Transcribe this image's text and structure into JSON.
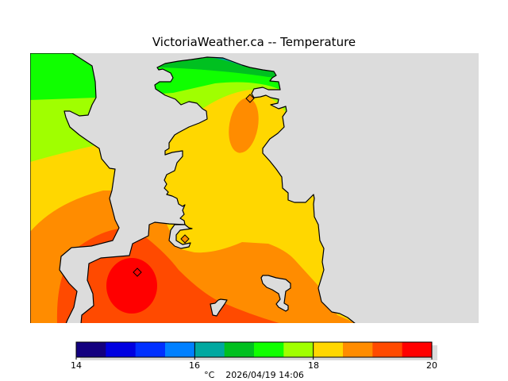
{
  "title": "VictoriaWeather.ca -- Temperature",
  "colorbar": {
    "min": 14,
    "max": 20,
    "ticks": [
      "14",
      "16",
      "18",
      "20"
    ],
    "tick_values": [
      14,
      16,
      18,
      20
    ],
    "colors": [
      "#13007f",
      "#0000e0",
      "#0030ff",
      "#0080ff",
      "#00a8a0",
      "#00c020",
      "#10ff00",
      "#a0ff00",
      "#ffd700",
      "#ff8c00",
      "#ff4a00",
      "#ff0000"
    ]
  },
  "caption": {
    "units": "°C",
    "timestamp": "2026/04/19 14:06"
  },
  "map": {
    "land_color": "#dcdcdc",
    "zone_colors": {
      "teal": "#00a8a0",
      "dark_green": "#00c020",
      "green": "#10ff00",
      "lime": "#a0ff00",
      "yellow": "#ffd700",
      "orange": "#ff8c00",
      "red_orange": "#ff4a00",
      "red": "#ff0000"
    }
  }
}
